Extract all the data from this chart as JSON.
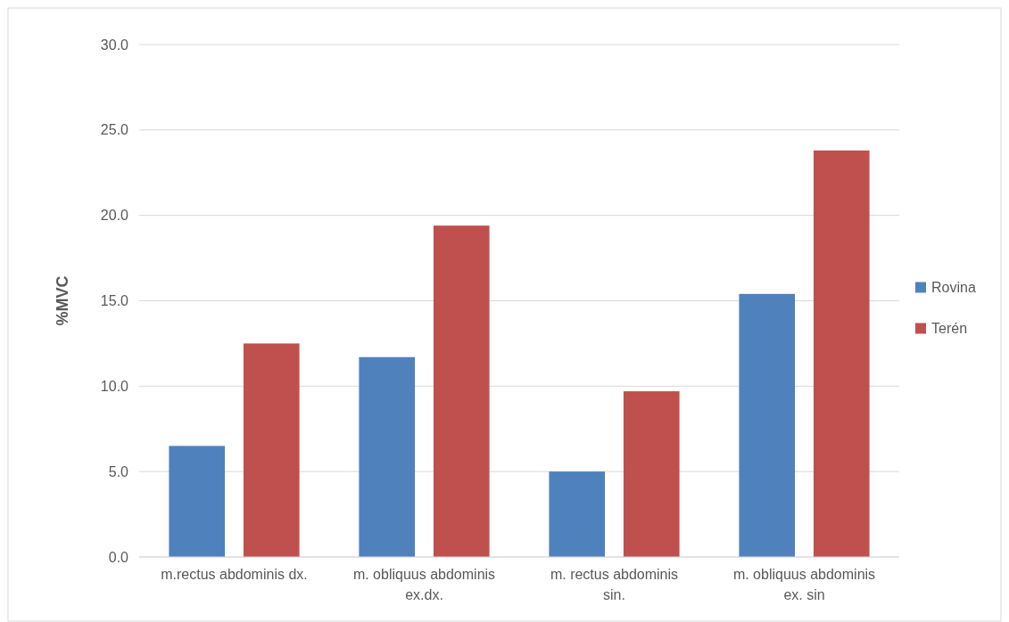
{
  "chart_data": {
    "type": "bar",
    "ylabel": "%MVC",
    "categories": [
      "m.rectus abdominis dx.",
      "m. obliquus abdominis ex.dx.",
      "m. rectus abdominis sin.",
      "m. obliquus abdominis ex. sin"
    ],
    "series": [
      {
        "name": "Rovina",
        "color": "#4f81bd",
        "values": [
          6.5,
          11.7,
          5.0,
          15.4
        ]
      },
      {
        "name": "Terén",
        "color": "#c0504d",
        "values": [
          12.5,
          19.4,
          9.7,
          23.8
        ]
      }
    ],
    "ylim": [
      0,
      30
    ],
    "yticks": [
      {
        "value": 0,
        "label": "0.0"
      },
      {
        "value": 5,
        "label": "5.0"
      },
      {
        "value": 10,
        "label": "10.0"
      },
      {
        "value": 15,
        "label": "15.0"
      },
      {
        "value": 20,
        "label": "20.0"
      },
      {
        "value": 25,
        "label": "25.0"
      },
      {
        "value": 30,
        "label": "30.0"
      }
    ],
    "grid": "y",
    "legend": "right"
  }
}
